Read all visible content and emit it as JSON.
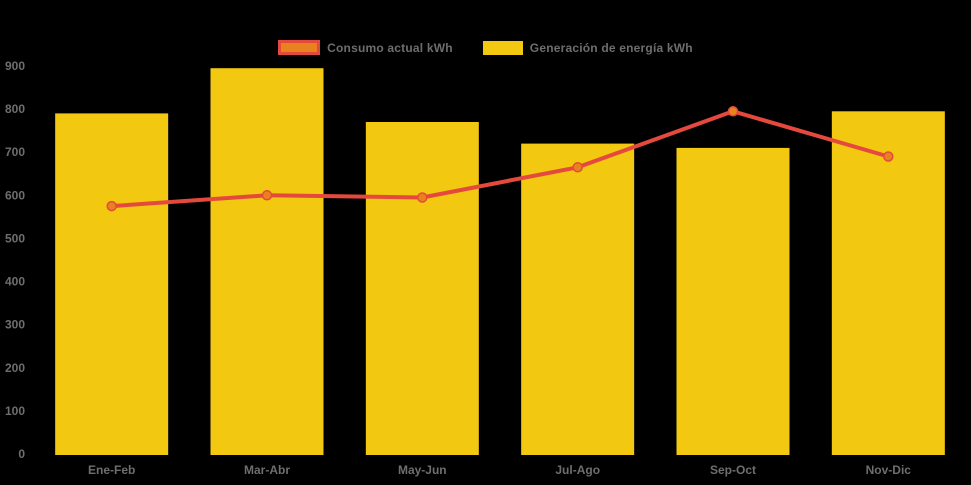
{
  "chart_data": {
    "type": "combo",
    "title": "",
    "xlabel": "",
    "ylabel": "",
    "categories": [
      "Ene-Feb",
      "Mar-Abr",
      "May-Jun",
      "Jul-Ago",
      "Sep-Oct",
      "Nov-Dic"
    ],
    "series": [
      {
        "name": "Consumo actual kWh",
        "type": "line",
        "color": "#E5493D",
        "marker_color": "#E8821E",
        "values": [
          575,
          600,
          595,
          665,
          795,
          690
        ]
      },
      {
        "name": "Generación de energía kWh",
        "type": "bar",
        "color": "#F2C811",
        "values": [
          790,
          895,
          770,
          720,
          710,
          795
        ]
      }
    ],
    "ylim": [
      0,
      900
    ],
    "ytick_step": 100,
    "yticks": [
      0,
      100,
      200,
      300,
      400,
      500,
      600,
      700,
      800,
      900
    ],
    "legend_position": "top-center",
    "grid": false,
    "background_color": "#000000",
    "axis_label_color": "#6E6E6E"
  }
}
